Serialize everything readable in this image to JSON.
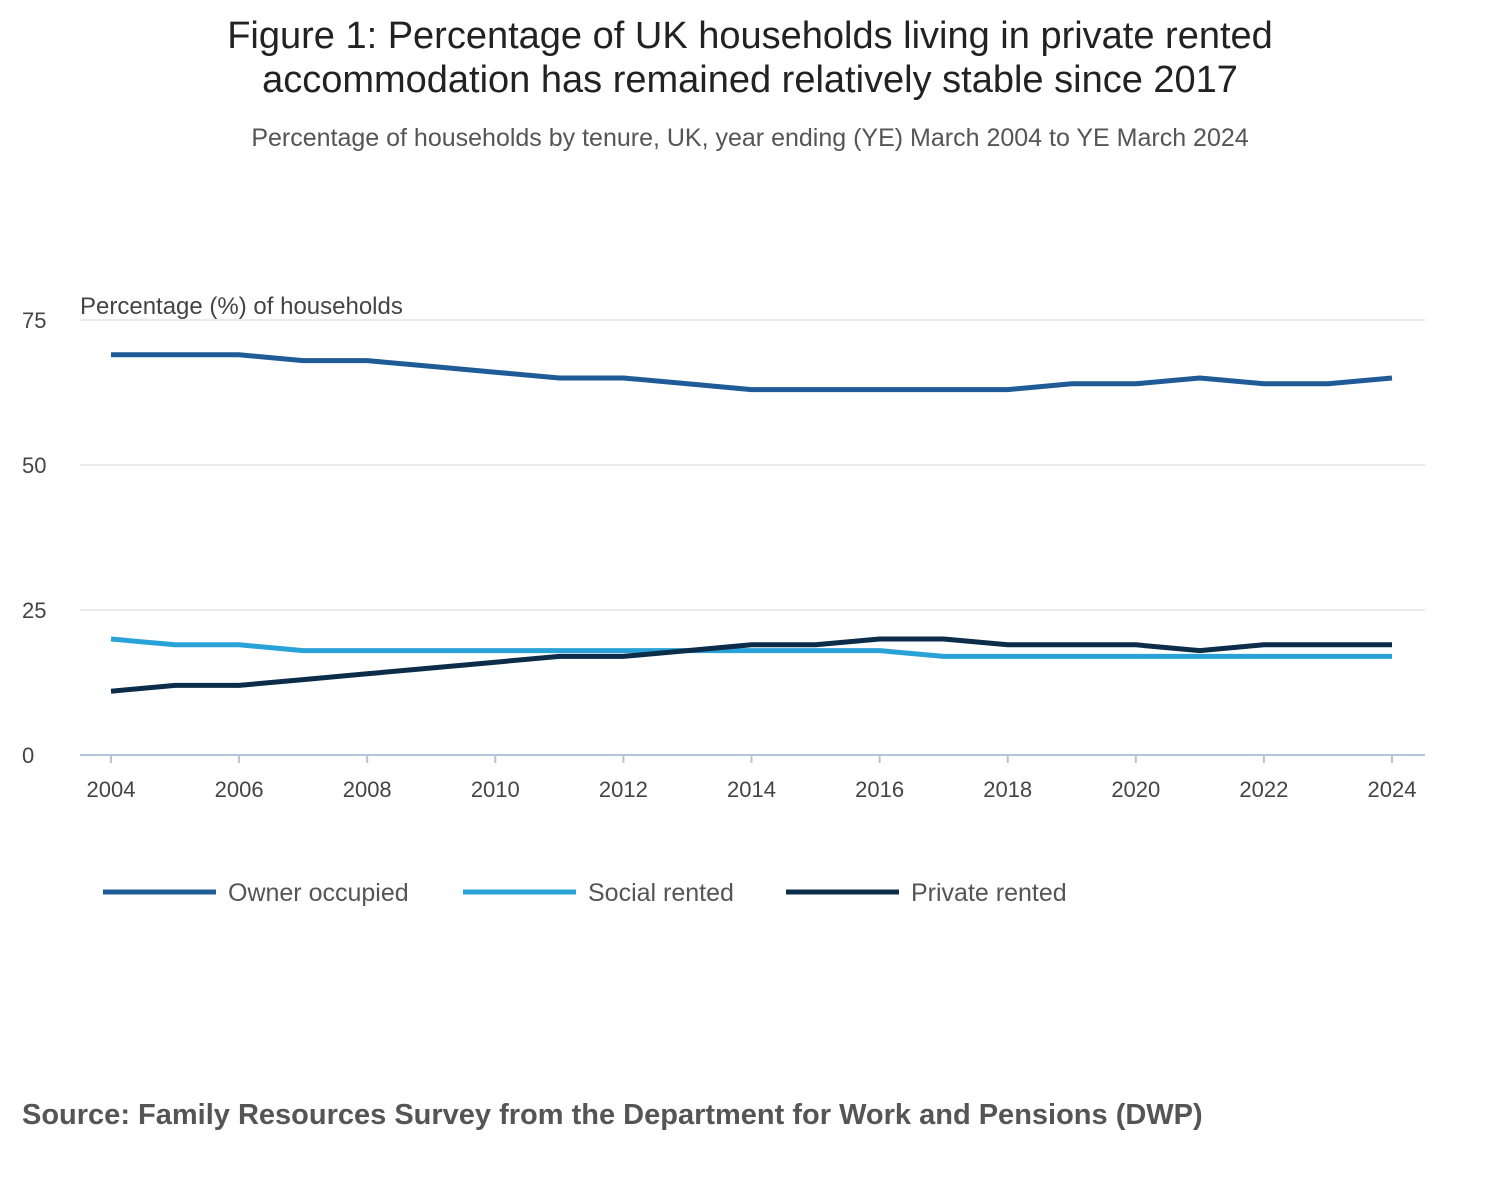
{
  "header": {
    "title_line1": "Figure 1: Percentage of UK households living in private rented",
    "title_line2": "accommodation has remained relatively stable since 2017",
    "subtitle": "Percentage of households by tenure, UK, year ending (YE) March 2004 to YE March 2024"
  },
  "footer": {
    "source": "Source: Family Resources Survey from the Department for Work and Pensions (DWP)"
  },
  "chart_data": {
    "type": "line",
    "ylabel": "Percentage (%) of households",
    "xlabel": "",
    "ylim": [
      0,
      75
    ],
    "yticks": [
      0,
      25,
      50,
      75
    ],
    "xticks": [
      2004,
      2006,
      2008,
      2010,
      2012,
      2014,
      2016,
      2018,
      2020,
      2022,
      2024
    ],
    "grid": true,
    "legend_position": "bottom-left",
    "x": [
      2004,
      2005,
      2006,
      2007,
      2008,
      2009,
      2010,
      2011,
      2012,
      2013,
      2014,
      2015,
      2016,
      2017,
      2018,
      2019,
      2020,
      2021,
      2022,
      2023,
      2024
    ],
    "series": [
      {
        "name": "Owner occupied",
        "color": "#1f5b96",
        "values": [
          69,
          69,
          69,
          68,
          68,
          67,
          66,
          65,
          65,
          64,
          63,
          63,
          63,
          63,
          63,
          64,
          64,
          65,
          64,
          64,
          65
        ]
      },
      {
        "name": "Social rented",
        "color": "#29a2d8",
        "values": [
          20,
          19,
          19,
          18,
          18,
          18,
          18,
          18,
          18,
          18,
          18,
          18,
          18,
          17,
          17,
          17,
          17,
          17,
          17,
          17,
          17
        ]
      },
      {
        "name": "Private rented",
        "color": "#0c2d4a",
        "values": [
          11,
          12,
          12,
          13,
          14,
          15,
          16,
          17,
          17,
          18,
          19,
          19,
          20,
          20,
          19,
          19,
          19,
          18,
          19,
          19,
          19
        ]
      }
    ]
  }
}
